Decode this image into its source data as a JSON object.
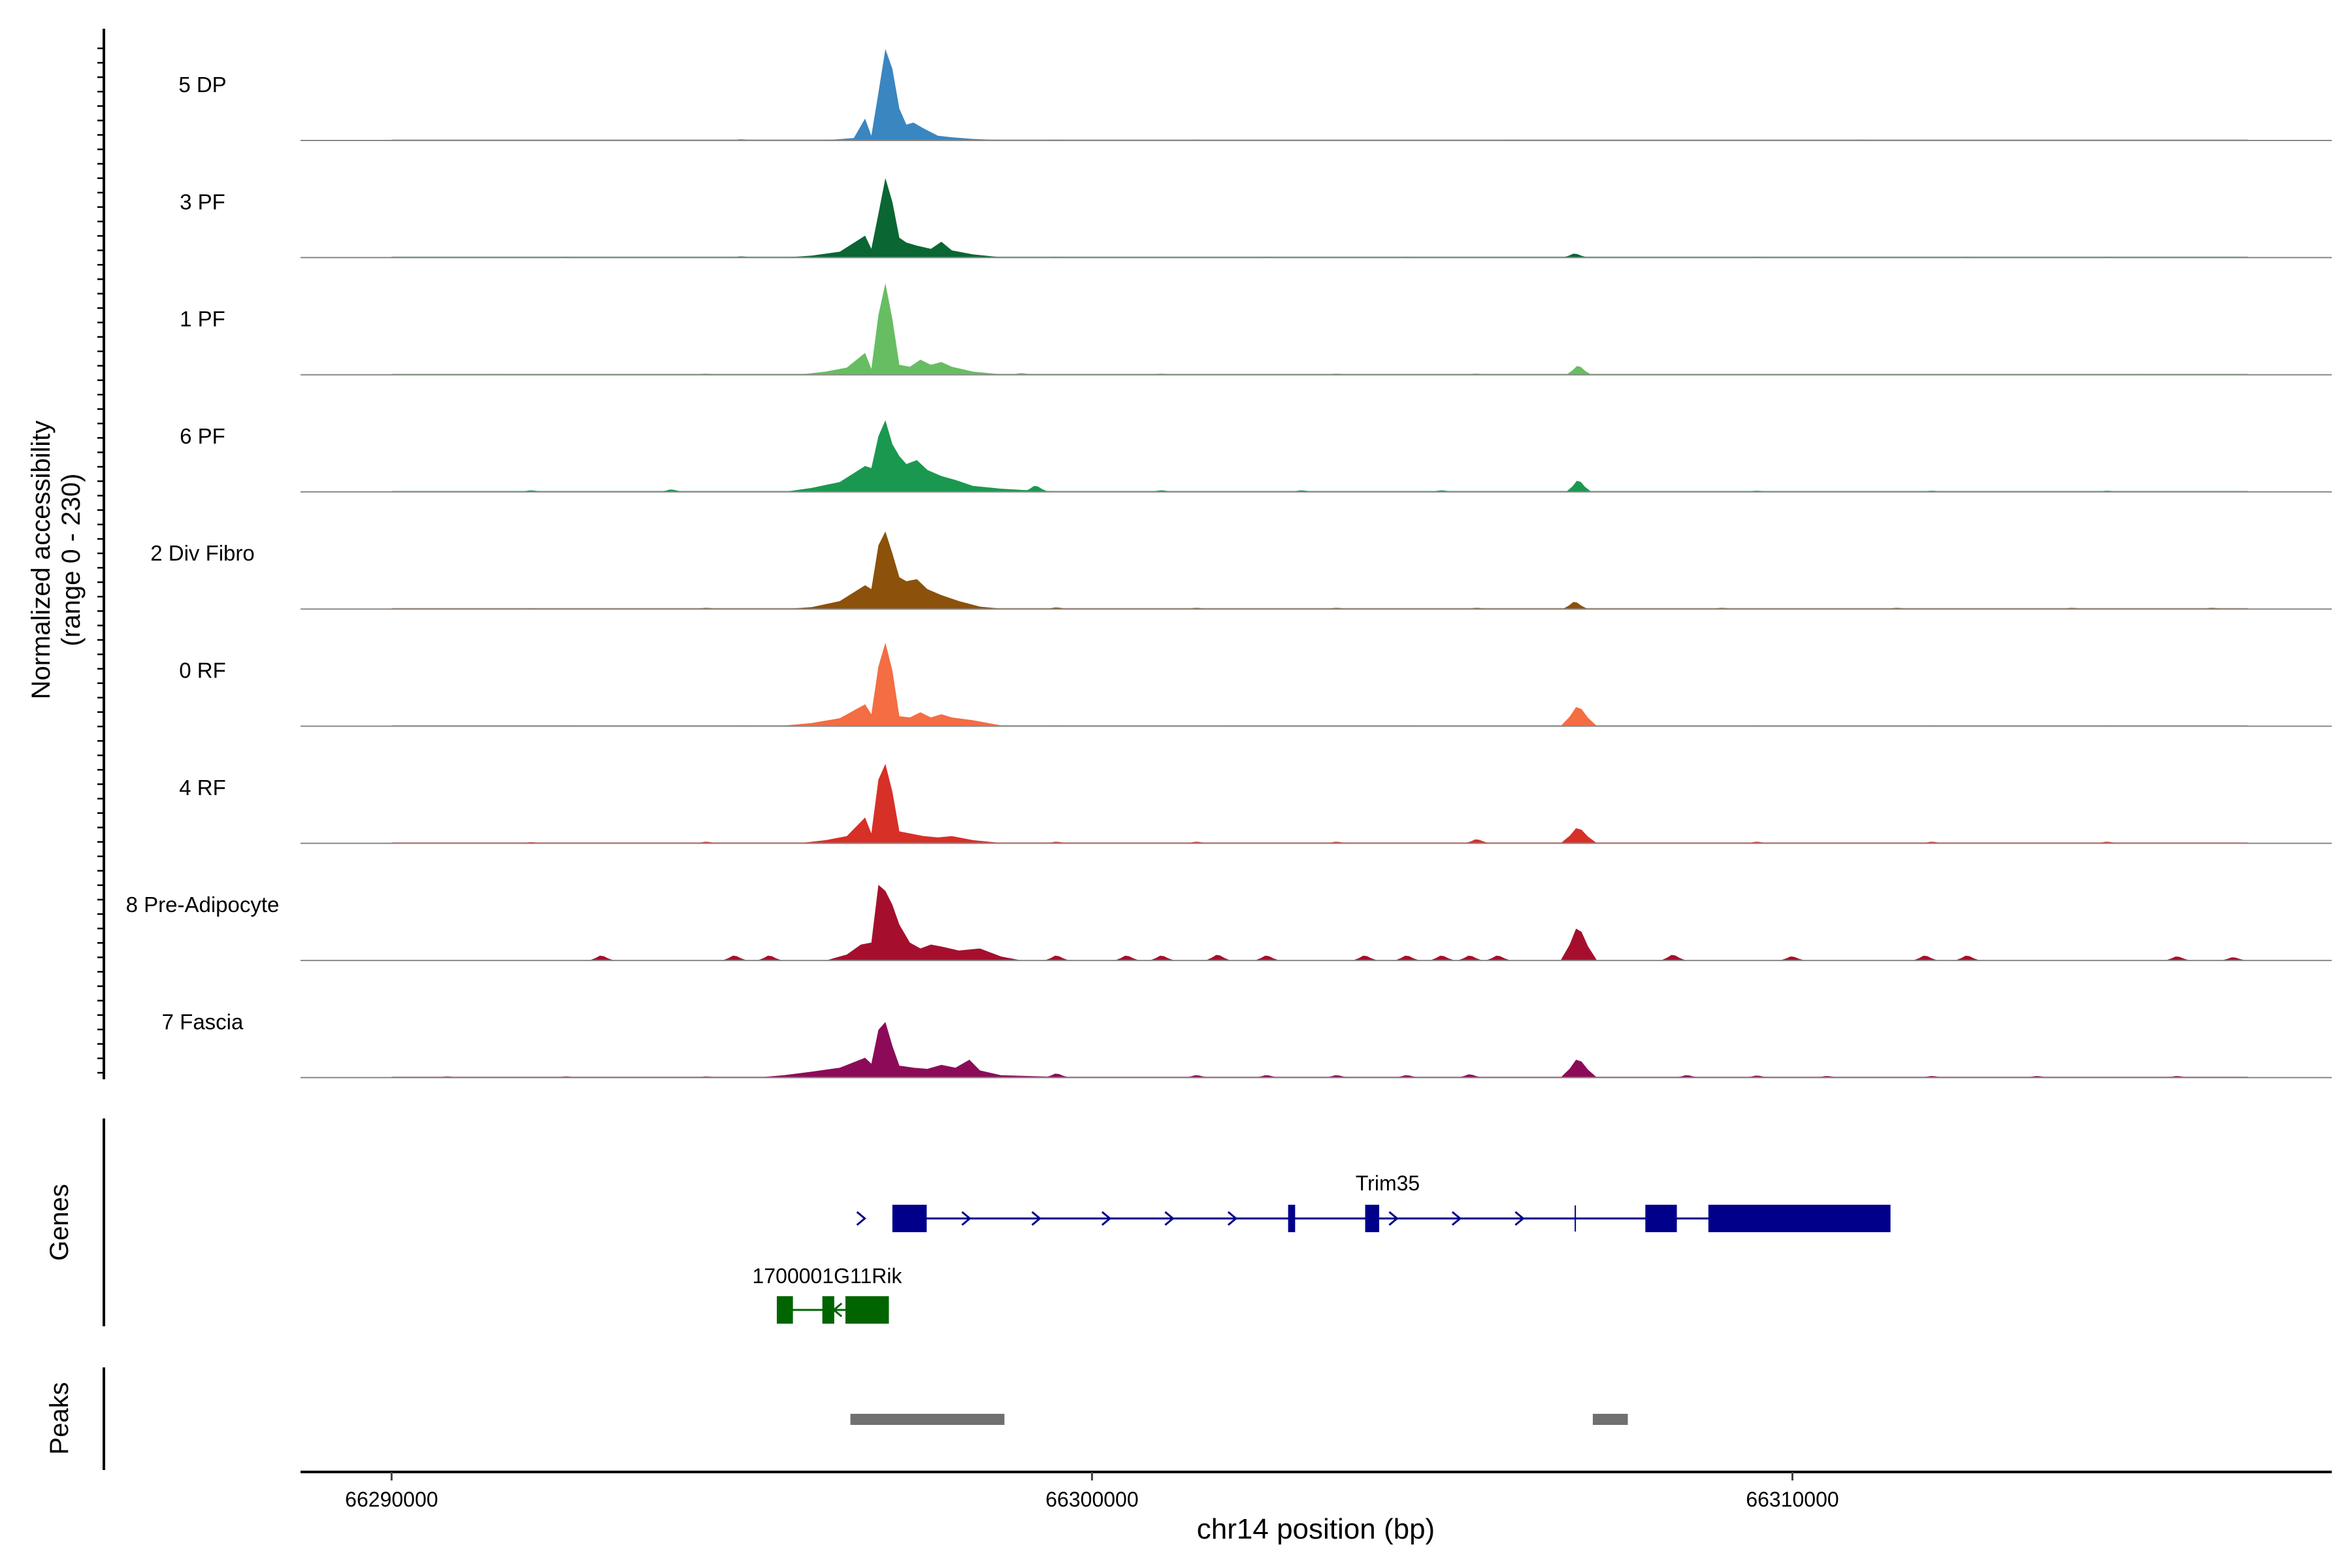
{
  "chart_data": {
    "type": "area",
    "title": "",
    "xlabel": "chr14 position (bp)",
    "xlim": [
      66288700,
      66317700
    ],
    "x_ticks": [
      66290000,
      66300000,
      66310000
    ],
    "x_tick_labels": [
      "66290000",
      "66300000",
      "66310000"
    ],
    "y_axis_title_line1": "Normalized accessibility",
    "y_axis_title_line2": "(range 0 - 230)",
    "ylim": [
      0,
      230
    ],
    "track_labels": {
      "genes": "Genes",
      "peaks": "Peaks"
    },
    "series": [
      {
        "name": "5 DP",
        "color": "#3a86c0",
        "baseline": 0.6,
        "baseline_extent": [
          66290000,
          66316500
        ],
        "points": [
          [
            66296000,
            0
          ],
          [
            66296300,
            2
          ],
          [
            66296600,
            6
          ],
          [
            66296760,
            55
          ],
          [
            66296850,
            12
          ],
          [
            66296950,
            120
          ],
          [
            66297050,
            230
          ],
          [
            66297150,
            180
          ],
          [
            66297250,
            80
          ],
          [
            66297350,
            40
          ],
          [
            66297450,
            45
          ],
          [
            66297600,
            30
          ],
          [
            66297800,
            12
          ],
          [
            66298000,
            8
          ],
          [
            66298300,
            4
          ],
          [
            66298700,
            1
          ]
        ],
        "bumps": [
          [
            66295000,
            3
          ],
          [
            66299500,
            2
          ],
          [
            66301500,
            2
          ],
          [
            66303500,
            1.5
          ],
          [
            66306000,
            2
          ],
          [
            66308500,
            1.5
          ],
          [
            66311000,
            2
          ],
          [
            66313500,
            1.5
          ]
        ]
      },
      {
        "name": "3 PF",
        "color": "#0a6633",
        "baseline": 0.6,
        "baseline_extent": [
          66290000,
          66316500
        ],
        "points": [
          [
            66295600,
            0
          ],
          [
            66296000,
            5
          ],
          [
            66296400,
            15
          ],
          [
            66296760,
            55
          ],
          [
            66296850,
            22
          ],
          [
            66296950,
            110
          ],
          [
            66297050,
            200
          ],
          [
            66297150,
            140
          ],
          [
            66297250,
            50
          ],
          [
            66297350,
            38
          ],
          [
            66297500,
            30
          ],
          [
            66297700,
            22
          ],
          [
            66297850,
            40
          ],
          [
            66298000,
            18
          ],
          [
            66298300,
            8
          ],
          [
            66298700,
            1
          ]
        ],
        "bumps": [
          [
            66292500,
            2
          ],
          [
            66295000,
            3
          ],
          [
            66299500,
            2
          ],
          [
            66302500,
            2
          ],
          [
            66304500,
            2
          ],
          [
            66306900,
            10
          ],
          [
            66309500,
            2
          ],
          [
            66312500,
            2
          ],
          [
            66314500,
            2
          ]
        ]
      },
      {
        "name": "1 PF",
        "color": "#67be62",
        "baseline": 0.6,
        "baseline_extent": [
          66290000,
          66316500
        ],
        "points": [
          [
            66295800,
            0
          ],
          [
            66296200,
            8
          ],
          [
            66296500,
            18
          ],
          [
            66296760,
            55
          ],
          [
            66296850,
            15
          ],
          [
            66296950,
            150
          ],
          [
            66297050,
            230
          ],
          [
            66297150,
            140
          ],
          [
            66297250,
            25
          ],
          [
            66297400,
            20
          ],
          [
            66297550,
            38
          ],
          [
            66297700,
            25
          ],
          [
            66297850,
            32
          ],
          [
            66298000,
            20
          ],
          [
            66298300,
            8
          ],
          [
            66298700,
            1
          ]
        ],
        "bumps": [
          [
            66291500,
            2
          ],
          [
            66294500,
            3
          ],
          [
            66299000,
            4
          ],
          [
            66301000,
            3
          ],
          [
            66303500,
            3
          ],
          [
            66305500,
            3
          ],
          [
            66306950,
            22
          ],
          [
            66309500,
            2
          ],
          [
            66312500,
            2
          ],
          [
            66315000,
            2
          ]
        ]
      },
      {
        "name": "6 PF",
        "color": "#1a9850",
        "baseline": 0.6,
        "baseline_extent": [
          66290000,
          66316500
        ],
        "points": [
          [
            66295600,
            0
          ],
          [
            66296000,
            10
          ],
          [
            66296400,
            25
          ],
          [
            66296760,
            65
          ],
          [
            66296850,
            60
          ],
          [
            66296950,
            140
          ],
          [
            66297050,
            180
          ],
          [
            66297150,
            120
          ],
          [
            66297250,
            90
          ],
          [
            66297350,
            70
          ],
          [
            66297500,
            80
          ],
          [
            66297650,
            55
          ],
          [
            66297850,
            40
          ],
          [
            66298050,
            30
          ],
          [
            66298300,
            15
          ],
          [
            66298700,
            8
          ],
          [
            66299000,
            5
          ],
          [
            66299500,
            1
          ]
        ],
        "bumps": [
          [
            66292000,
            4
          ],
          [
            66294000,
            6
          ],
          [
            66299200,
            15
          ],
          [
            66301000,
            4
          ],
          [
            66303000,
            4
          ],
          [
            66305000,
            4
          ],
          [
            66306950,
            28
          ],
          [
            66309500,
            3
          ],
          [
            66312000,
            3
          ],
          [
            66314500,
            3
          ]
        ]
      },
      {
        "name": "2 Div Fibro",
        "color": "#8c510a",
        "baseline": 0.8,
        "baseline_extent": [
          66290000,
          66316500
        ],
        "points": [
          [
            66295600,
            0
          ],
          [
            66296000,
            5
          ],
          [
            66296400,
            20
          ],
          [
            66296760,
            60
          ],
          [
            66296850,
            50
          ],
          [
            66296950,
            160
          ],
          [
            66297050,
            195
          ],
          [
            66297150,
            140
          ],
          [
            66297250,
            80
          ],
          [
            66297350,
            70
          ],
          [
            66297500,
            75
          ],
          [
            66297650,
            50
          ],
          [
            66297850,
            35
          ],
          [
            66298100,
            20
          ],
          [
            66298400,
            6
          ],
          [
            66298700,
            1
          ]
        ],
        "bumps": [
          [
            66292000,
            2
          ],
          [
            66294500,
            3
          ],
          [
            66299500,
            4
          ],
          [
            66301500,
            3
          ],
          [
            66303500,
            3
          ],
          [
            66305500,
            3
          ],
          [
            66306900,
            18
          ],
          [
            66309000,
            3
          ],
          [
            66311500,
            3
          ],
          [
            66314000,
            3
          ],
          [
            66316000,
            3
          ]
        ]
      },
      {
        "name": "0 RF",
        "color": "#f46d43",
        "baseline": 0.5,
        "baseline_extent": [
          66290000,
          66316500
        ],
        "points": [
          [
            66295500,
            0
          ],
          [
            66296000,
            8
          ],
          [
            66296400,
            20
          ],
          [
            66296760,
            55
          ],
          [
            66296850,
            30
          ],
          [
            66296950,
            150
          ],
          [
            66297050,
            210
          ],
          [
            66297150,
            140
          ],
          [
            66297250,
            25
          ],
          [
            66297400,
            22
          ],
          [
            66297550,
            35
          ],
          [
            66297700,
            22
          ],
          [
            66297850,
            30
          ],
          [
            66298000,
            22
          ],
          [
            66298300,
            15
          ],
          [
            66298700,
            2
          ]
        ],
        "bumps": [
          [
            66292500,
            2
          ],
          [
            66295000,
            2
          ],
          [
            66299500,
            2
          ],
          [
            66302000,
            2
          ],
          [
            66304500,
            2
          ],
          [
            66306950,
            48
          ],
          [
            66309500,
            2
          ],
          [
            66312000,
            2
          ],
          [
            66314500,
            2
          ]
        ]
      },
      {
        "name": "4 RF",
        "color": "#d73027",
        "baseline": 0.8,
        "baseline_extent": [
          66290000,
          66316500
        ],
        "points": [
          [
            66295800,
            0
          ],
          [
            66296200,
            8
          ],
          [
            66296500,
            18
          ],
          [
            66296760,
            65
          ],
          [
            66296850,
            25
          ],
          [
            66296950,
            160
          ],
          [
            66297050,
            200
          ],
          [
            66297150,
            130
          ],
          [
            66297250,
            30
          ],
          [
            66297400,
            25
          ],
          [
            66297600,
            18
          ],
          [
            66297800,
            15
          ],
          [
            66298000,
            18
          ],
          [
            66298300,
            8
          ],
          [
            66298700,
            1
          ]
        ],
        "bumps": [
          [
            66292000,
            3
          ],
          [
            66294500,
            4
          ],
          [
            66299500,
            4
          ],
          [
            66301500,
            4
          ],
          [
            66303500,
            4
          ],
          [
            66305500,
            10
          ],
          [
            66306950,
            38
          ],
          [
            66309500,
            4
          ],
          [
            66312000,
            4
          ],
          [
            66314500,
            4
          ]
        ]
      },
      {
        "name": "8 Pre-Adipocyte",
        "color": "#a50f2d",
        "baseline": 0,
        "baseline_extent": [
          66290000,
          66316500
        ],
        "points": [
          [
            66296200,
            0
          ],
          [
            66296500,
            15
          ],
          [
            66296700,
            40
          ],
          [
            66296850,
            45
          ],
          [
            66296950,
            190
          ],
          [
            66297050,
            175
          ],
          [
            66297150,
            140
          ],
          [
            66297250,
            90
          ],
          [
            66297400,
            45
          ],
          [
            66297550,
            30
          ],
          [
            66297700,
            40
          ],
          [
            66297850,
            35
          ],
          [
            66298100,
            25
          ],
          [
            66298400,
            30
          ],
          [
            66298700,
            10
          ],
          [
            66299000,
            0
          ]
        ],
        "bumps": [
          [
            66293000,
            12
          ],
          [
            66294900,
            12
          ],
          [
            66295400,
            12
          ],
          [
            66299500,
            12
          ],
          [
            66300500,
            12
          ],
          [
            66301000,
            12
          ],
          [
            66301800,
            14
          ],
          [
            66302500,
            12
          ],
          [
            66303900,
            12
          ],
          [
            66304500,
            12
          ],
          [
            66305000,
            12
          ],
          [
            66305400,
            12
          ],
          [
            66305800,
            12
          ],
          [
            66306950,
            80
          ],
          [
            66308300,
            14
          ],
          [
            66310000,
            10
          ],
          [
            66311900,
            12
          ],
          [
            66312500,
            12
          ],
          [
            66315500,
            10
          ],
          [
            66316300,
            8
          ]
        ]
      },
      {
        "name": "7 Fascia",
        "color": "#8c0b59",
        "baseline": 0.5,
        "baseline_extent": [
          66290000,
          66316500
        ],
        "points": [
          [
            66295200,
            0
          ],
          [
            66295600,
            6
          ],
          [
            66296000,
            15
          ],
          [
            66296400,
            25
          ],
          [
            66296760,
            50
          ],
          [
            66296850,
            35
          ],
          [
            66296950,
            120
          ],
          [
            66297050,
            140
          ],
          [
            66297150,
            80
          ],
          [
            66297250,
            30
          ],
          [
            66297450,
            25
          ],
          [
            66297650,
            22
          ],
          [
            66297850,
            32
          ],
          [
            66298050,
            25
          ],
          [
            66298250,
            45
          ],
          [
            66298400,
            18
          ],
          [
            66298700,
            6
          ],
          [
            66299500,
            2
          ]
        ],
        "bumps": [
          [
            66290800,
            3
          ],
          [
            66292500,
            3
          ],
          [
            66294500,
            3
          ],
          [
            66299500,
            10
          ],
          [
            66301500,
            6
          ],
          [
            66302500,
            6
          ],
          [
            66303500,
            6
          ],
          [
            66304500,
            6
          ],
          [
            66305400,
            8
          ],
          [
            66306950,
            45
          ],
          [
            66308500,
            6
          ],
          [
            66309500,
            5
          ],
          [
            66310500,
            4
          ],
          [
            66312000,
            4
          ],
          [
            66313500,
            4
          ],
          [
            66315500,
            4
          ]
        ]
      }
    ],
    "genes": [
      {
        "name": "Trim35",
        "color": "#00008b",
        "strand": "+",
        "start": 66297150,
        "end": 66311400,
        "exons": [
          [
            66297150,
            66297640
          ],
          [
            66302800,
            66302900
          ],
          [
            66303900,
            66304100
          ],
          [
            66307900,
            66308350
          ],
          [
            66308800,
            66311400
          ]
        ],
        "arrows": [
          66296700,
          66298200,
          66299200,
          66300200,
          66301100,
          66302000,
          66304300,
          66305200,
          66306100
        ],
        "tick_mark": 66306900
      },
      {
        "name": "1700001G11Rik",
        "color": "#006400",
        "strand": "-",
        "start": 66295500,
        "end": 66297100,
        "exons": [
          [
            66295500,
            66295730
          ],
          [
            66296150,
            66296320
          ],
          [
            66296480,
            66297100
          ]
        ],
        "arrows": [
          66296370
        ]
      }
    ],
    "peaks": [
      {
        "start": 66296550,
        "end": 66298750
      },
      {
        "start": 66307150,
        "end": 66307650
      }
    ]
  }
}
